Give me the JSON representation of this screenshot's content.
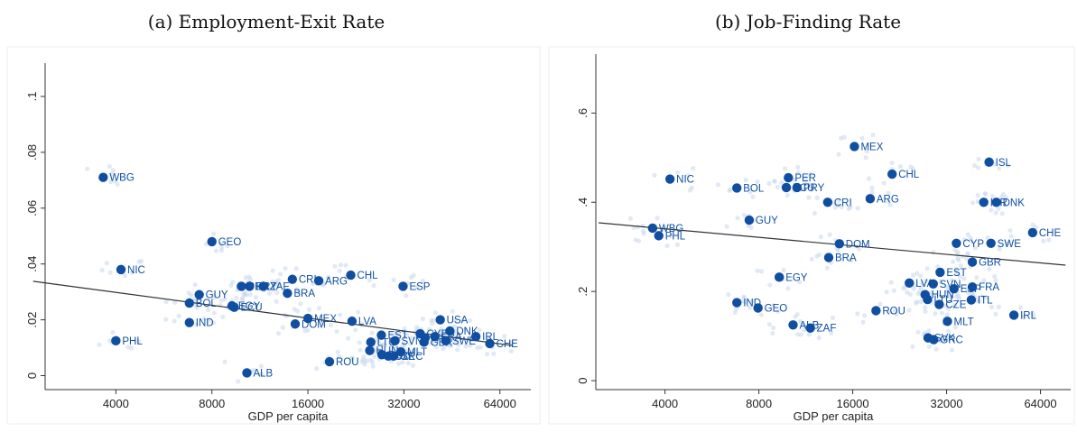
{
  "chart_data": [
    {
      "type": "scatter",
      "title": "(a) Employment-Exit Rate",
      "xlabel": "GDP per capita",
      "ylabel": "",
      "x_scale": "log",
      "xlim": [
        2400,
        80000
      ],
      "ylim": [
        -0.005,
        0.11
      ],
      "x_ticks": [
        4000,
        8000,
        16000,
        32000,
        64000
      ],
      "x_tick_labels": [
        "4000",
        "8000",
        "16000",
        "32000",
        "64000"
      ],
      "y_ticks": [
        0,
        0.02,
        0.04,
        0.06,
        0.08,
        0.1
      ],
      "y_tick_labels": [
        "0",
        ".02",
        ".04",
        ".06",
        ".08",
        ".1"
      ],
      "fit_line": [
        [
          2200,
          0.0338
        ],
        [
          70000,
          0.0108
        ]
      ],
      "colors": {
        "point": "#0f4ea1",
        "background_points": "#c9d7ec",
        "fit": "#333333"
      },
      "points": [
        {
          "label": "WBG",
          "x": 3650,
          "y": 0.071
        },
        {
          "label": "NIC",
          "x": 4150,
          "y": 0.038
        },
        {
          "label": "PHL",
          "x": 4000,
          "y": 0.0125
        },
        {
          "label": "GEO",
          "x": 8000,
          "y": 0.048
        },
        {
          "label": "GUY",
          "x": 7300,
          "y": 0.029
        },
        {
          "label": "BOL",
          "x": 6800,
          "y": 0.026
        },
        {
          "label": "IND",
          "x": 6800,
          "y": 0.019
        },
        {
          "label": "ECU",
          "x": 9400,
          "y": 0.0245
        },
        {
          "label": "EGY",
          "x": 9250,
          "y": 0.025
        },
        {
          "label": "PER",
          "x": 9900,
          "y": 0.032
        },
        {
          "label": "PRY",
          "x": 10500,
          "y": 0.032
        },
        {
          "label": "ZAF",
          "x": 11600,
          "y": 0.032
        },
        {
          "label": "CRI",
          "x": 14300,
          "y": 0.0345
        },
        {
          "label": "BRA",
          "x": 13800,
          "y": 0.0295
        },
        {
          "label": "ARG",
          "x": 17300,
          "y": 0.034
        },
        {
          "label": "CHL",
          "x": 21800,
          "y": 0.036
        },
        {
          "label": "ESP",
          "x": 31800,
          "y": 0.032
        },
        {
          "label": "MEX",
          "x": 16000,
          "y": 0.0205
        },
        {
          "label": "DOM",
          "x": 14600,
          "y": 0.0185
        },
        {
          "label": "LVA",
          "x": 22000,
          "y": 0.0195
        },
        {
          "label": "ALB",
          "x": 10300,
          "y": 0.001
        },
        {
          "label": "ROU",
          "x": 18700,
          "y": 0.005
        },
        {
          "label": "EST",
          "x": 27200,
          "y": 0.0145
        },
        {
          "label": "LTU",
          "x": 25200,
          "y": 0.012
        },
        {
          "label": "HUN",
          "x": 25000,
          "y": 0.009
        },
        {
          "label": "SVN",
          "x": 30000,
          "y": 0.0125
        },
        {
          "label": "POL",
          "x": 27300,
          "y": 0.0075
        },
        {
          "label": "CZE",
          "x": 28600,
          "y": 0.007
        },
        {
          "label": "GRC",
          "x": 29700,
          "y": 0.007
        },
        {
          "label": "MLT",
          "x": 31300,
          "y": 0.0085
        },
        {
          "label": "USA",
          "x": 41600,
          "y": 0.02
        },
        {
          "label": "DNK",
          "x": 44600,
          "y": 0.016
        },
        {
          "label": "GBR",
          "x": 37000,
          "y": 0.012
        },
        {
          "label": "SWE",
          "x": 43300,
          "y": 0.0125
        },
        {
          "label": "CHE",
          "x": 59500,
          "y": 0.0115
        },
        {
          "label": "IRL",
          "x": 53800,
          "y": 0.014
        },
        {
          "label": "ITL",
          "x": 37300,
          "y": 0.0135
        },
        {
          "label": "CYP",
          "x": 36000,
          "y": 0.015
        },
        {
          "label": "FRA",
          "x": 40000,
          "y": 0.014
        }
      ]
    },
    {
      "type": "scatter",
      "title": "(b) Job-Finding Rate",
      "xlabel": "GDP per capita",
      "ylabel": "",
      "x_scale": "log",
      "xlim": [
        2400,
        80000
      ],
      "ylim": [
        -0.02,
        0.72
      ],
      "x_ticks": [
        4000,
        8000,
        16000,
        32000,
        64000
      ],
      "x_tick_labels": [
        "4000",
        "8000",
        "16000",
        "32000",
        "64000"
      ],
      "y_ticks": [
        0,
        0.2,
        0.4,
        0.6
      ],
      "y_tick_labels": [
        "0",
        ".2",
        ".4",
        ".6"
      ],
      "fit_line": [
        [
          2450,
          0.354
        ],
        [
          77000,
          0.259
        ]
      ],
      "colors": {
        "point": "#0f4ea1",
        "background_points": "#c9d7ec",
        "fit": "#333333"
      },
      "points": [
        {
          "label": "MEX",
          "x": 16200,
          "y": 0.525
        },
        {
          "label": "ISL",
          "x": 43800,
          "y": 0.49
        },
        {
          "label": "CHL",
          "x": 21400,
          "y": 0.463
        },
        {
          "label": "NIC",
          "x": 4150,
          "y": 0.452
        },
        {
          "label": "PER",
          "x": 9950,
          "y": 0.455
        },
        {
          "label": "ECU",
          "x": 9800,
          "y": 0.433
        },
        {
          "label": "PRY",
          "x": 10600,
          "y": 0.433
        },
        {
          "label": "BOL",
          "x": 6800,
          "y": 0.432
        },
        {
          "label": "ARG",
          "x": 18200,
          "y": 0.408
        },
        {
          "label": "CRI",
          "x": 13300,
          "y": 0.4
        },
        {
          "label": "ISR",
          "x": 42100,
          "y": 0.4
        },
        {
          "label": "DNK",
          "x": 46200,
          "y": 0.4
        },
        {
          "label": "GUY",
          "x": 7450,
          "y": 0.36
        },
        {
          "label": "WBG",
          "x": 3650,
          "y": 0.342
        },
        {
          "label": "PHL",
          "x": 3820,
          "y": 0.325
        },
        {
          "label": "CHE",
          "x": 60400,
          "y": 0.332
        },
        {
          "label": "CYP",
          "x": 34400,
          "y": 0.308
        },
        {
          "label": "SWE",
          "x": 44400,
          "y": 0.308
        },
        {
          "label": "DOM",
          "x": 14500,
          "y": 0.307
        },
        {
          "label": "BRA",
          "x": 13400,
          "y": 0.276
        },
        {
          "label": "GBR",
          "x": 38700,
          "y": 0.266
        },
        {
          "label": "EST",
          "x": 30500,
          "y": 0.243
        },
        {
          "label": "EGY",
          "x": 9300,
          "y": 0.232
        },
        {
          "label": "LVA",
          "x": 24300,
          "y": 0.219
        },
        {
          "label": "SVN",
          "x": 29000,
          "y": 0.217
        },
        {
          "label": "FRA",
          "x": 38700,
          "y": 0.21
        },
        {
          "label": "ESP",
          "x": 33800,
          "y": 0.206
        },
        {
          "label": "HUN",
          "x": 27300,
          "y": 0.193
        },
        {
          "label": "LTU",
          "x": 27800,
          "y": 0.182
        },
        {
          "label": "ITL",
          "x": 38400,
          "y": 0.181
        },
        {
          "label": "CZE",
          "x": 30300,
          "y": 0.171
        },
        {
          "label": "IND",
          "x": 6800,
          "y": 0.175
        },
        {
          "label": "GEO",
          "x": 7950,
          "y": 0.163
        },
        {
          "label": "ROU",
          "x": 19000,
          "y": 0.157
        },
        {
          "label": "IRL",
          "x": 52600,
          "y": 0.147
        },
        {
          "label": "MLT",
          "x": 32200,
          "y": 0.133
        },
        {
          "label": "ALB",
          "x": 10300,
          "y": 0.125
        },
        {
          "label": "ZAF",
          "x": 11700,
          "y": 0.118
        },
        {
          "label": "SVK",
          "x": 27900,
          "y": 0.096
        },
        {
          "label": "GRC",
          "x": 29100,
          "y": 0.092
        }
      ]
    }
  ]
}
